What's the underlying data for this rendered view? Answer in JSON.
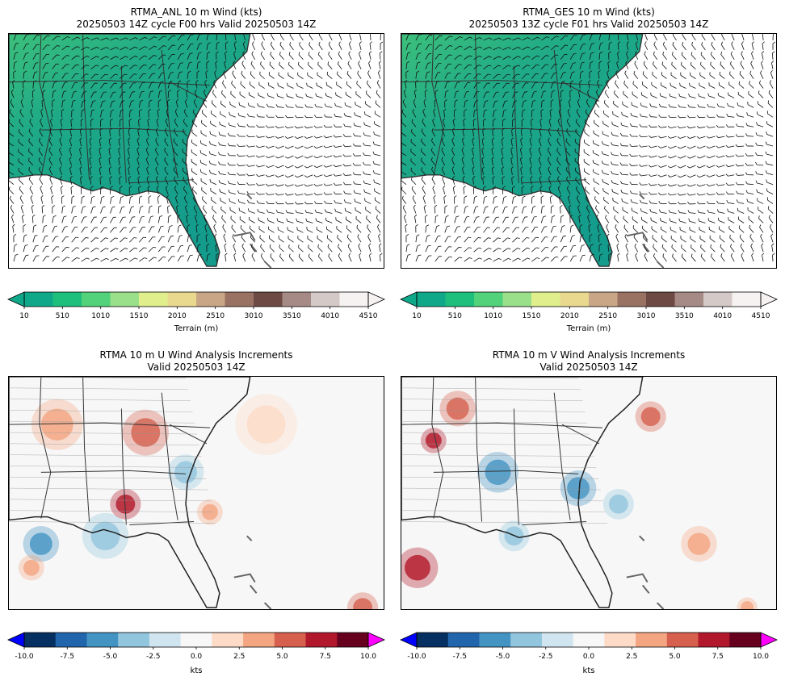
{
  "panels": {
    "top_left": {
      "title_line1": "RTMA_ANL 10 m Wind (kts)",
      "title_line2": "20250503 14Z cycle F00 hrs Valid 20250503 14Z"
    },
    "top_right": {
      "title_line1": "RTMA_GES 10 m Wind (kts)",
      "title_line2": "20250503 13Z cycle F01 hrs Valid 20250503 14Z"
    },
    "bottom_left": {
      "title_line1": "RTMA 10 m U Wind Analysis Increments",
      "title_line2": "Valid 20250503 14Z"
    },
    "bottom_right": {
      "title_line1": "RTMA 10 m V Wind Analysis Increments",
      "title_line2": "Valid 20250503 14Z"
    }
  },
  "terrain_colorbar": {
    "label": "Terrain (m)",
    "ticks": [
      "10",
      "510",
      "1010",
      "1510",
      "2010",
      "2510",
      "3010",
      "3510",
      "4010",
      "4510"
    ],
    "colors": [
      "#0fa98a",
      "#1ebf7c",
      "#52d27a",
      "#9ae08a",
      "#e0ee8c",
      "#e9d98f",
      "#c9a685",
      "#9a7264",
      "#6e4a44",
      "#a68a86",
      "#d5c9c7",
      "#f6f2f2"
    ]
  },
  "increment_colorbar": {
    "label": "kts",
    "ticks": [
      "-10.0",
      "-7.5",
      "-5.0",
      "-2.5",
      "0.0",
      "2.5",
      "5.0",
      "7.5",
      "10.0"
    ],
    "colors": [
      "#053061",
      "#2166ac",
      "#4393c3",
      "#92c5de",
      "#d1e5f0",
      "#f7f7f7",
      "#fddbc7",
      "#f4a582",
      "#d6604d",
      "#b2182b",
      "#67001f"
    ],
    "under_color": "#0000ff",
    "over_color": "#ff00ff"
  }
}
